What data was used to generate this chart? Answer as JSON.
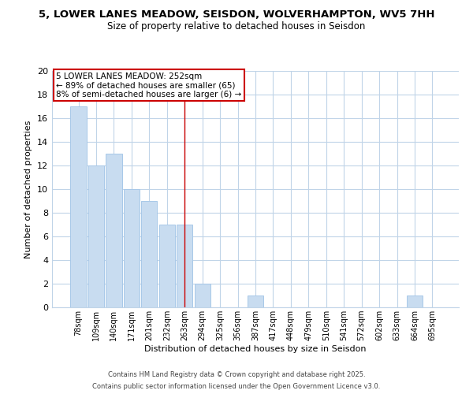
{
  "title": "5, LOWER LANES MEADOW, SEISDON, WOLVERHAMPTON, WV5 7HH",
  "subtitle": "Size of property relative to detached houses in Seisdon",
  "xlabel": "Distribution of detached houses by size in Seisdon",
  "ylabel": "Number of detached properties",
  "bar_labels": [
    "78sqm",
    "109sqm",
    "140sqm",
    "171sqm",
    "201sqm",
    "232sqm",
    "263sqm",
    "294sqm",
    "325sqm",
    "356sqm",
    "387sqm",
    "417sqm",
    "448sqm",
    "479sqm",
    "510sqm",
    "541sqm",
    "572sqm",
    "602sqm",
    "633sqm",
    "664sqm",
    "695sqm"
  ],
  "bar_values": [
    17,
    12,
    13,
    10,
    9,
    7,
    7,
    2,
    0,
    0,
    1,
    0,
    0,
    0,
    0,
    0,
    0,
    0,
    0,
    1,
    0
  ],
  "bar_color": "#c8dcf0",
  "bar_edge_color": "#a8c8e8",
  "highlight_bar_index": 6,
  "highlight_line_color": "#cc0000",
  "ylim": [
    0,
    20
  ],
  "yticks": [
    0,
    2,
    4,
    6,
    8,
    10,
    12,
    14,
    16,
    18,
    20
  ],
  "annotation_title": "5 LOWER LANES MEADOW: 252sqm",
  "annotation_line1": "← 89% of detached houses are smaller (65)",
  "annotation_line2": "8% of semi-detached houses are larger (6) →",
  "annotation_box_color": "#ffffff",
  "annotation_box_edge_color": "#cc0000",
  "footer_line1": "Contains HM Land Registry data © Crown copyright and database right 2025.",
  "footer_line2": "Contains public sector information licensed under the Open Government Licence v3.0.",
  "background_color": "#ffffff",
  "grid_color": "#c0d4e8"
}
